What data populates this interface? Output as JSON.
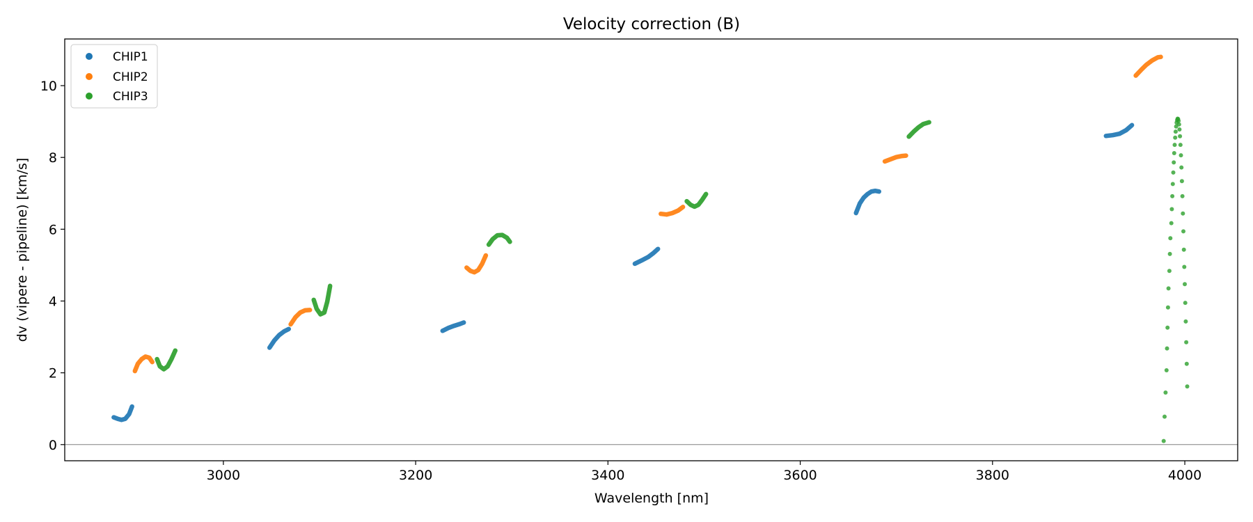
{
  "chart_data": {
    "type": "scatter",
    "title": "Velocity correction (B)",
    "xlabel": "Wavelength [nm]",
    "ylabel": "dv (vipere - pipeline) [km/s]",
    "xlim": [
      2835,
      4055
    ],
    "ylim": [
      -0.45,
      11.3
    ],
    "xticks": [
      3000,
      3200,
      3400,
      3600,
      3800,
      4000
    ],
    "yticks": [
      0,
      2,
      4,
      6,
      8,
      10
    ],
    "grid": false,
    "hline": 0,
    "legend_position": "top-left",
    "legend": [
      "CHIP1",
      "CHIP2",
      "CHIP3"
    ],
    "series": [
      {
        "name": "CHIP1",
        "color": "#1f77b4",
        "segments": [
          [
            [
              2886,
              0.76
            ],
            [
              2890,
              0.72
            ],
            [
              2894,
              0.69
            ],
            [
              2898,
              0.72
            ],
            [
              2902,
              0.85
            ],
            [
              2905,
              1.06
            ]
          ],
          [
            [
              3048,
              2.7
            ],
            [
              3053,
              2.9
            ],
            [
              3058,
              3.05
            ],
            [
              3063,
              3.15
            ],
            [
              3068,
              3.22
            ]
          ],
          [
            [
              3228,
              3.17
            ],
            [
              3234,
              3.25
            ],
            [
              3240,
              3.31
            ],
            [
              3246,
              3.36
            ],
            [
              3250,
              3.4
            ]
          ],
          [
            [
              3428,
              5.04
            ],
            [
              3435,
              5.13
            ],
            [
              3442,
              5.23
            ],
            [
              3447,
              5.33
            ],
            [
              3452,
              5.45
            ]
          ],
          [
            [
              3658,
              6.45
            ],
            [
              3662,
              6.72
            ],
            [
              3666,
              6.88
            ],
            [
              3670,
              6.98
            ],
            [
              3674,
              7.05
            ],
            [
              3678,
              7.07
            ],
            [
              3682,
              7.05
            ]
          ],
          [
            [
              3918,
              8.6
            ],
            [
              3925,
              8.62
            ],
            [
              3932,
              8.66
            ],
            [
              3939,
              8.76
            ],
            [
              3945,
              8.9
            ]
          ]
        ],
        "scatter": []
      },
      {
        "name": "CHIP2",
        "color": "#ff7f0e",
        "segments": [
          [
            [
              2908,
              2.05
            ],
            [
              2911,
              2.25
            ],
            [
              2915,
              2.38
            ],
            [
              2919,
              2.45
            ],
            [
              2923,
              2.42
            ],
            [
              2926,
              2.3
            ]
          ],
          [
            [
              3070,
              3.35
            ],
            [
              3075,
              3.55
            ],
            [
              3080,
              3.68
            ],
            [
              3085,
              3.74
            ],
            [
              3090,
              3.75
            ]
          ],
          [
            [
              3253,
              4.93
            ],
            [
              3257,
              4.84
            ],
            [
              3261,
              4.8
            ],
            [
              3265,
              4.86
            ],
            [
              3269,
              5.03
            ],
            [
              3273,
              5.27
            ]
          ],
          [
            [
              3455,
              6.43
            ],
            [
              3461,
              6.41
            ],
            [
              3467,
              6.45
            ],
            [
              3473,
              6.52
            ],
            [
              3478,
              6.62
            ]
          ],
          [
            [
              3688,
              7.89
            ],
            [
              3694,
              7.95
            ],
            [
              3700,
              8.01
            ],
            [
              3706,
              8.04
            ],
            [
              3710,
              8.05
            ]
          ],
          [
            [
              3949,
              10.28
            ],
            [
              3955,
              10.45
            ],
            [
              3960,
              10.58
            ],
            [
              3966,
              10.7
            ],
            [
              3972,
              10.79
            ],
            [
              3975,
              10.8
            ]
          ]
        ],
        "scatter": []
      },
      {
        "name": "CHIP3",
        "color": "#2ca02c",
        "segments": [
          [
            [
              2931,
              2.38
            ],
            [
              2934,
              2.18
            ],
            [
              2938,
              2.1
            ],
            [
              2942,
              2.18
            ],
            [
              2946,
              2.38
            ],
            [
              2950,
              2.62
            ]
          ],
          [
            [
              3094,
              4.03
            ],
            [
              3097,
              3.78
            ],
            [
              3101,
              3.63
            ],
            [
              3105,
              3.68
            ],
            [
              3108,
              3.98
            ],
            [
              3111,
              4.42
            ]
          ],
          [
            [
              3276,
              5.57
            ],
            [
              3280,
              5.72
            ],
            [
              3285,
              5.83
            ],
            [
              3290,
              5.84
            ],
            [
              3295,
              5.76
            ],
            [
              3298,
              5.65
            ]
          ],
          [
            [
              3482,
              6.78
            ],
            [
              3486,
              6.68
            ],
            [
              3490,
              6.63
            ],
            [
              3494,
              6.68
            ],
            [
              3498,
              6.82
            ],
            [
              3502,
              6.98
            ]
          ],
          [
            [
              3713,
              8.58
            ],
            [
              3718,
              8.72
            ],
            [
              3723,
              8.84
            ],
            [
              3728,
              8.93
            ],
            [
              3734,
              8.98
            ]
          ]
        ],
        "scatter": [
          [
            3978,
            0.1
          ],
          [
            3979,
            0.78
          ],
          [
            3980,
            1.45
          ],
          [
            3981,
            2.07
          ],
          [
            3981.5,
            2.68
          ],
          [
            3982,
            3.26
          ],
          [
            3982.5,
            3.82
          ],
          [
            3983,
            4.35
          ],
          [
            3984,
            4.84
          ],
          [
            3984.5,
            5.31
          ],
          [
            3985,
            5.75
          ],
          [
            3986,
            6.17
          ],
          [
            3986.5,
            6.56
          ],
          [
            3987,
            6.92
          ],
          [
            3987.5,
            7.26
          ],
          [
            3988,
            7.58
          ],
          [
            3988.5,
            7.86
          ],
          [
            3989,
            8.12
          ],
          [
            3989.5,
            8.35
          ],
          [
            3990,
            8.55
          ],
          [
            3990.5,
            8.72
          ],
          [
            3991,
            8.86
          ],
          [
            3991.5,
            8.97
          ],
          [
            3992,
            9.04
          ],
          [
            3992.5,
            9.08
          ],
          [
            3993,
            9.07
          ],
          [
            3993.5,
            9.02
          ],
          [
            3994,
            8.92
          ],
          [
            3994.5,
            8.78
          ],
          [
            3995,
            8.59
          ],
          [
            3995.5,
            8.35
          ],
          [
            3996,
            8.06
          ],
          [
            3996.5,
            7.72
          ],
          [
            3997,
            7.34
          ],
          [
            3997.5,
            6.92
          ],
          [
            3998,
            6.44
          ],
          [
            3998.5,
            5.94
          ],
          [
            3999,
            5.43
          ],
          [
            3999.5,
            4.95
          ],
          [
            4000,
            4.47
          ],
          [
            4000.5,
            3.95
          ],
          [
            4001,
            3.43
          ],
          [
            4001.5,
            2.85
          ],
          [
            4002,
            2.25
          ],
          [
            4002.5,
            1.62
          ]
        ]
      }
    ]
  }
}
